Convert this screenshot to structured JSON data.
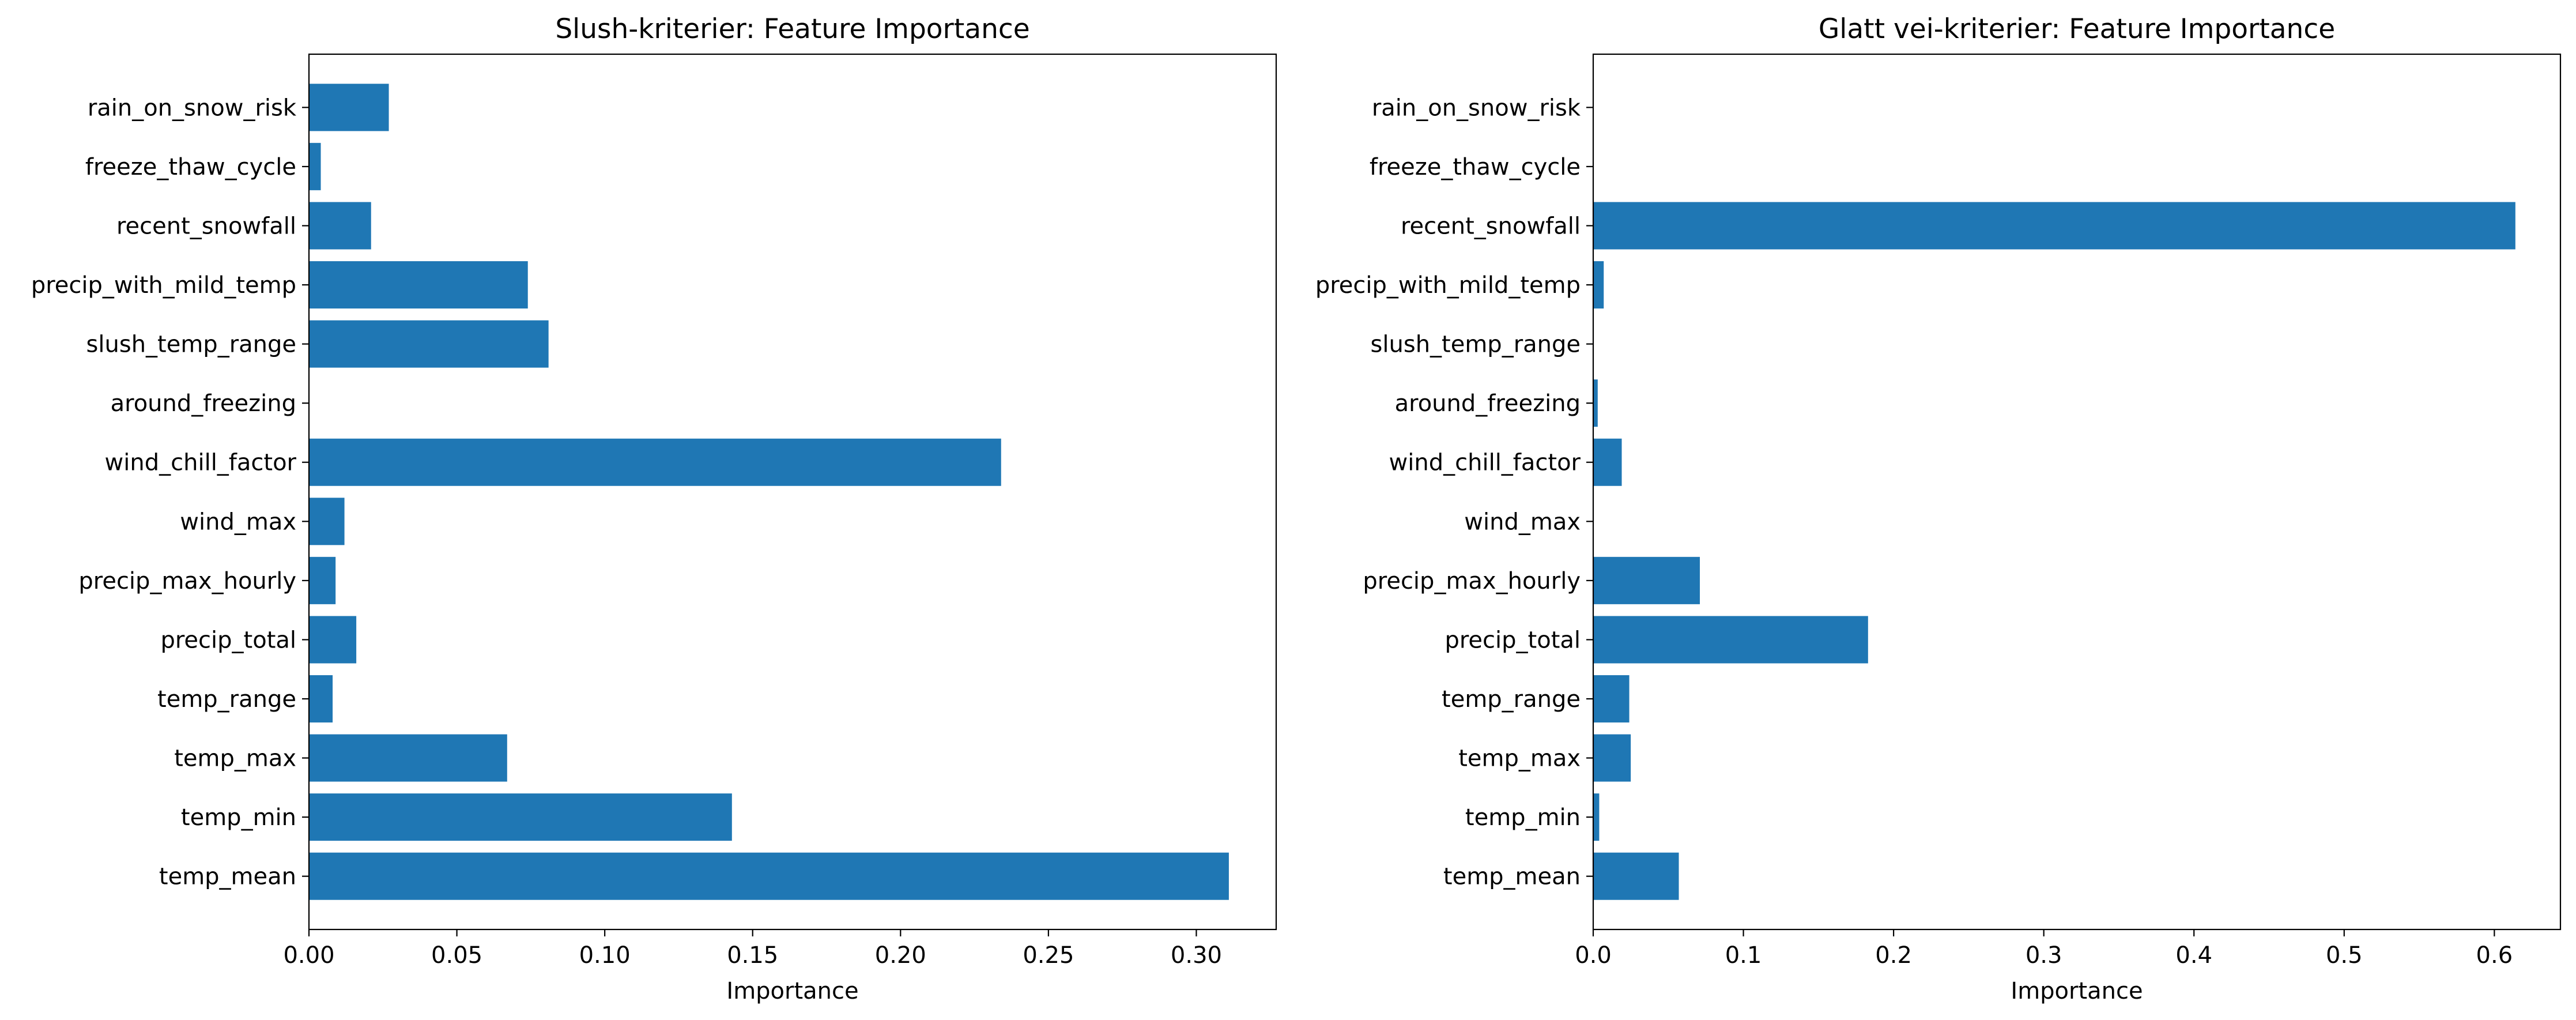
{
  "colors": {
    "bar": "#1f77b4",
    "axis": "#000000",
    "background": "#ffffff"
  },
  "chart_data": [
    {
      "type": "bar",
      "orientation": "horizontal",
      "title": "Slush-kriterier: Feature Importance",
      "xlabel": "Importance",
      "ylabel": "",
      "xlim": [
        0,
        0.327
      ],
      "xticks": [
        0.0,
        0.05,
        0.1,
        0.15,
        0.2,
        0.25,
        0.3
      ],
      "xtick_labels": [
        "0.00",
        "0.05",
        "0.10",
        "0.15",
        "0.20",
        "0.25",
        "0.30"
      ],
      "grid": false,
      "categories": [
        "temp_mean",
        "temp_min",
        "temp_max",
        "temp_range",
        "precip_total",
        "precip_max_hourly",
        "wind_max",
        "wind_chill_factor",
        "around_freezing",
        "slush_temp_range",
        "precip_with_mild_temp",
        "recent_snowfall",
        "freeze_thaw_cycle",
        "rain_on_snow_risk"
      ],
      "values": [
        0.311,
        0.143,
        0.067,
        0.008,
        0.016,
        0.009,
        0.012,
        0.234,
        0.0,
        0.081,
        0.074,
        0.021,
        0.004,
        0.027
      ]
    },
    {
      "type": "bar",
      "orientation": "horizontal",
      "title": "Glatt vei-kriterier: Feature Importance",
      "xlabel": "Importance",
      "ylabel": "",
      "xlim": [
        0,
        0.644
      ],
      "xticks": [
        0.0,
        0.1,
        0.2,
        0.3,
        0.4,
        0.5,
        0.6
      ],
      "xtick_labels": [
        "0.0",
        "0.1",
        "0.2",
        "0.3",
        "0.4",
        "0.5",
        "0.6"
      ],
      "grid": false,
      "categories": [
        "temp_mean",
        "temp_min",
        "temp_max",
        "temp_range",
        "precip_total",
        "precip_max_hourly",
        "wind_max",
        "wind_chill_factor",
        "around_freezing",
        "slush_temp_range",
        "precip_with_mild_temp",
        "recent_snowfall",
        "freeze_thaw_cycle",
        "rain_on_snow_risk"
      ],
      "values": [
        0.057,
        0.004,
        0.025,
        0.024,
        0.183,
        0.071,
        0.0,
        0.019,
        0.003,
        0.0,
        0.007,
        0.614,
        0.0,
        0.0
      ]
    }
  ]
}
